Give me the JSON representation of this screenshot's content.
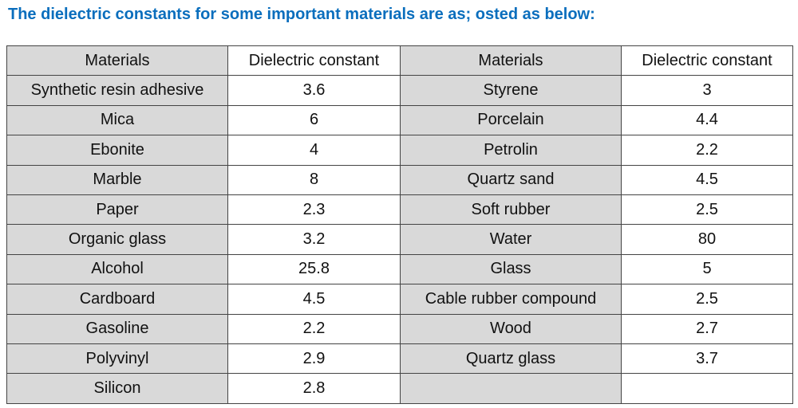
{
  "title": "The dielectric constants for some important materials are as; osted as below:",
  "table": {
    "header": [
      "Materials",
      "Dielectric constant",
      "Materials",
      "Dielectric constant"
    ],
    "rows": [
      [
        "Synthetic resin adhesive",
        "3.6",
        "Styrene",
        "3"
      ],
      [
        "Mica",
        "6",
        "Porcelain",
        "4.4"
      ],
      [
        "Ebonite",
        "4",
        "Petrolin",
        "2.2"
      ],
      [
        "Marble",
        "8",
        "Quartz sand",
        "4.5"
      ],
      [
        "Paper",
        "2.3",
        "Soft rubber",
        "2.5"
      ],
      [
        "Organic glass",
        "3.2",
        "Water",
        "80"
      ],
      [
        "Alcohol",
        "25.8",
        "Glass",
        "5"
      ],
      [
        "Cardboard",
        "4.5",
        "Cable rubber compound",
        "2.5"
      ],
      [
        "Gasoline",
        "2.2",
        "Wood",
        "2.7"
      ],
      [
        "Polyvinyl",
        "2.9",
        "Quartz glass",
        "3.7"
      ],
      [
        "Silicon",
        "2.8"
      ]
    ]
  }
}
